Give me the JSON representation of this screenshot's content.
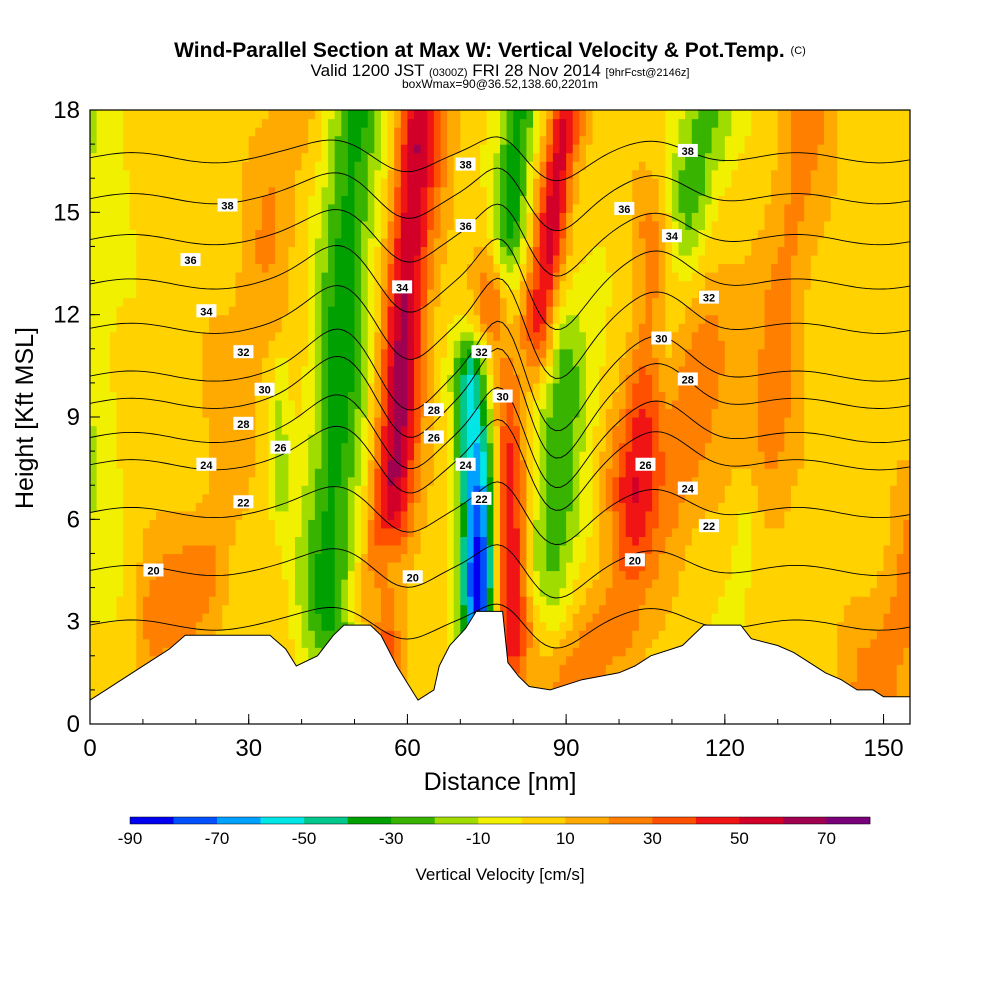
{
  "chart_data": {
    "type": "heatmap",
    "title": "Wind-Parallel Section at Max W: Vertical Velocity & Pot.Temp.",
    "title_mark": "(C)",
    "subtitle": {
      "valid_prefix": "Valid 1200 JST",
      "utc_time": "(0300Z)",
      "valid_date": "FRI 28 Nov 2014",
      "forecast_info": "[9hrFcst@2146z]"
    },
    "subtitle2": "boxWmax=90@36.52,138.60,2201m",
    "xlabel": "Distance [nm]",
    "ylabel": "Height [Kft MSL]",
    "xlim": [
      0,
      155
    ],
    "ylim": [
      0,
      18
    ],
    "x_ticks": [
      "0",
      "30",
      "60",
      "90",
      "120",
      "150"
    ],
    "y_ticks": [
      "0",
      "3",
      "6",
      "9",
      "12",
      "15",
      "18"
    ],
    "colorbar": {
      "title": "Vertical Velocity [cm/s]",
      "labels": [
        "-90",
        "-70",
        "-50",
        "-30",
        "-10",
        "10",
        "30",
        "50",
        "70"
      ],
      "colors": [
        "#0000f0",
        "#0050ff",
        "#00a0ff",
        "#00e6e6",
        "#00c88c",
        "#00a000",
        "#38b400",
        "#a0dc00",
        "#f0f000",
        "#ffd200",
        "#ffaa00",
        "#ff8000",
        "#ff5000",
        "#f01414",
        "#d20028",
        "#a00050",
        "#780078"
      ]
    },
    "velocity_bands": [
      {
        "x0": 0,
        "y0": 5,
        "x1": 0,
        "y1": 18,
        "w": -12,
        "half_width": 4
      },
      {
        "x0": 36,
        "y0": 6.5,
        "x1": 36,
        "y1": 10,
        "w": -14,
        "half_width": 1.2
      },
      {
        "x0": 45,
        "y0": 4,
        "x1": 50,
        "y1": 18,
        "w": -38,
        "half_width": 4
      },
      {
        "x0": 55,
        "y0": 3,
        "x1": 61,
        "y1": 17,
        "w": 45,
        "half_width": 2.8
      },
      {
        "x0": 59,
        "y0": 7,
        "x1": 65,
        "y1": 18,
        "w": 20,
        "half_width": 3
      },
      {
        "x0": 52,
        "y0": 1.5,
        "x1": 56,
        "y1": 4.5,
        "w": -30,
        "half_width": 2
      },
      {
        "x0": 73,
        "y0": 3,
        "x1": 72,
        "y1": 10,
        "w": -55,
        "half_width": 2.2
      },
      {
        "x0": 74,
        "y0": 4,
        "x1": 81,
        "y1": 18,
        "w": -40,
        "half_width": 2.6
      },
      {
        "x0": 80,
        "y0": 3,
        "x1": 77,
        "y1": 12,
        "w": 55,
        "half_width": 2.6
      },
      {
        "x0": 85,
        "y0": 12,
        "x1": 90,
        "y1": 18,
        "w": 50,
        "half_width": 2.5
      },
      {
        "x0": 87,
        "y0": 5,
        "x1": 90,
        "y1": 10,
        "w": -30,
        "half_width": 4
      },
      {
        "x0": 88,
        "y0": 0.8,
        "x1": 100,
        "y1": 3,
        "w": 22,
        "half_width": 3
      },
      {
        "x0": 103,
        "y0": 7,
        "x1": 107,
        "y1": 13,
        "w": 40,
        "half_width": 3.5
      },
      {
        "x0": 108,
        "y0": 12,
        "x1": 117,
        "y1": 18,
        "w": -30,
        "half_width": 3.5
      },
      {
        "x0": 110,
        "y0": 7,
        "x1": 117,
        "y1": 11,
        "w": 22,
        "half_width": 4
      },
      {
        "x0": 122,
        "y0": 3,
        "x1": 124,
        "y1": 6,
        "w": -14,
        "half_width": 2
      },
      {
        "x0": 128,
        "y0": 8,
        "x1": 135,
        "y1": 18,
        "w": 20,
        "half_width": 4
      },
      {
        "x0": 12,
        "y0": 3.0,
        "x1": 22,
        "y1": 4.5,
        "w": 22,
        "half_width": 3
      },
      {
        "x0": 28,
        "y0": 10,
        "x1": 38,
        "y1": 18,
        "w": 15,
        "half_width": 4
      },
      {
        "x0": 148,
        "y0": 0.5,
        "x1": 155,
        "y1": 4,
        "w": 22,
        "half_width": 4
      }
    ],
    "terrain_kft": [
      [
        0,
        0.7
      ],
      [
        3,
        1.0
      ],
      [
        6,
        1.3
      ],
      [
        9,
        1.6
      ],
      [
        12,
        1.9
      ],
      [
        15,
        2.2
      ],
      [
        18,
        2.6
      ],
      [
        25,
        2.6
      ],
      [
        34,
        2.6
      ],
      [
        37,
        2.2
      ],
      [
        39,
        1.7
      ],
      [
        43,
        2.0
      ],
      [
        46,
        2.6
      ],
      [
        48,
        2.9
      ],
      [
        53,
        2.9
      ],
      [
        55,
        2.6
      ],
      [
        58,
        1.7
      ],
      [
        60,
        1.2
      ],
      [
        62,
        0.7
      ],
      [
        65,
        1.0
      ],
      [
        66,
        1.7
      ],
      [
        68,
        2.3
      ],
      [
        71,
        2.8
      ],
      [
        73,
        3.3
      ],
      [
        78,
        3.3
      ],
      [
        79,
        1.8
      ],
      [
        81,
        1.4
      ],
      [
        83,
        1.1
      ],
      [
        87,
        1.0
      ],
      [
        93,
        1.3
      ],
      [
        100,
        1.5
      ],
      [
        103,
        1.7
      ],
      [
        106,
        2.0
      ],
      [
        112,
        2.3
      ],
      [
        116,
        2.9
      ],
      [
        123,
        2.9
      ],
      [
        125,
        2.5
      ],
      [
        130,
        2.3
      ],
      [
        133,
        2.1
      ],
      [
        136,
        1.8
      ],
      [
        139,
        1.5
      ],
      [
        142,
        1.3
      ],
      [
        145,
        1.0
      ],
      [
        148,
        1.0
      ],
      [
        150,
        0.8
      ],
      [
        155,
        0.8
      ]
    ],
    "theta_contours": [
      {
        "value": 20,
        "base_kft": 2.9,
        "dip": 0.4
      },
      {
        "value": 20,
        "base_kft": 4.5,
        "dip": 0.5
      },
      {
        "value": 22,
        "base_kft": 6.2,
        "dip": 0.6
      },
      {
        "value": 24,
        "base_kft": 7.6,
        "dip": 0.9
      },
      {
        "value": 26,
        "base_kft": 8.4,
        "dip": 1.0
      },
      {
        "value": 28,
        "base_kft": 9.4,
        "dip": 1.1
      },
      {
        "value": 30,
        "base_kft": 10.2,
        "dip": 1.1
      },
      {
        "value": 32,
        "base_kft": 11.6,
        "dip": 1.0
      },
      {
        "value": 34,
        "base_kft": 12.9,
        "dip": 0.9
      },
      {
        "value": 36,
        "base_kft": 14.2,
        "dip": 0.7
      },
      {
        "value": 36,
        "base_kft": 15.4,
        "dip": 0.6
      },
      {
        "value": 38,
        "base_kft": 16.6,
        "dip": 0.4
      }
    ],
    "contour_labels": [
      {
        "text": "38",
        "x": 26,
        "y": 15.2
      },
      {
        "text": "36",
        "x": 19,
        "y": 13.6
      },
      {
        "text": "34",
        "x": 22,
        "y": 12.1
      },
      {
        "text": "32",
        "x": 29,
        "y": 10.9
      },
      {
        "text": "30",
        "x": 33,
        "y": 9.8
      },
      {
        "text": "28",
        "x": 29,
        "y": 8.8
      },
      {
        "text": "26",
        "x": 36,
        "y": 8.1
      },
      {
        "text": "24",
        "x": 22,
        "y": 7.6
      },
      {
        "text": "22",
        "x": 29,
        "y": 6.5
      },
      {
        "text": "20",
        "x": 12,
        "y": 4.5
      },
      {
        "text": "20",
        "x": 61,
        "y": 4.3
      },
      {
        "text": "34",
        "x": 59,
        "y": 12.8
      },
      {
        "text": "38",
        "x": 71,
        "y": 16.4
      },
      {
        "text": "36",
        "x": 71,
        "y": 14.6
      },
      {
        "text": "32",
        "x": 74,
        "y": 10.9
      },
      {
        "text": "28",
        "x": 65,
        "y": 9.2
      },
      {
        "text": "26",
        "x": 65,
        "y": 8.4
      },
      {
        "text": "24",
        "x": 71,
        "y": 7.6
      },
      {
        "text": "22",
        "x": 74,
        "y": 6.6
      },
      {
        "text": "30",
        "x": 78,
        "y": 9.6
      },
      {
        "text": "36",
        "x": 101,
        "y": 15.1
      },
      {
        "text": "38",
        "x": 113,
        "y": 16.8
      },
      {
        "text": "34",
        "x": 110,
        "y": 14.3
      },
      {
        "text": "32",
        "x": 117,
        "y": 12.5
      },
      {
        "text": "30",
        "x": 108,
        "y": 11.3
      },
      {
        "text": "28",
        "x": 113,
        "y": 10.1
      },
      {
        "text": "26",
        "x": 105,
        "y": 7.6
      },
      {
        "text": "24",
        "x": 113,
        "y": 6.9
      },
      {
        "text": "22",
        "x": 117,
        "y": 5.8
      },
      {
        "text": "20",
        "x": 103,
        "y": 4.8
      }
    ]
  }
}
